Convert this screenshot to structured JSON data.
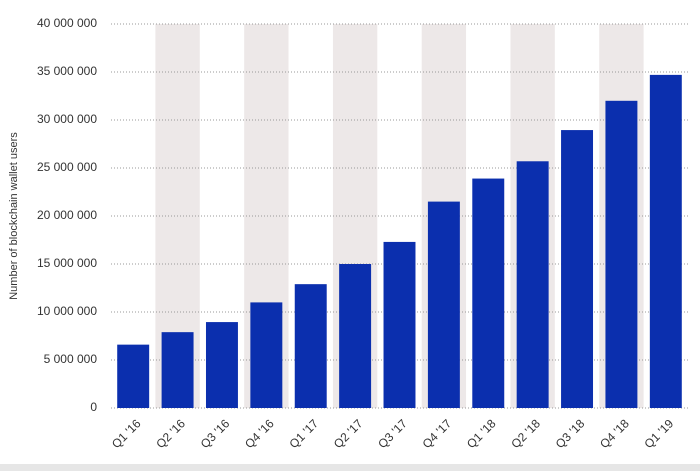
{
  "chart_data": {
    "type": "bar",
    "y_axis_label": "Number of blockchain wallet users",
    "categories": [
      "Q1 '16",
      "Q2 '16",
      "Q3 '16",
      "Q4 '16",
      "Q1 '17",
      "Q2 '17",
      "Q3 '17",
      "Q4 '17",
      "Q1 '18",
      "Q2 '18",
      "Q3 '18",
      "Q4 '18",
      "Q1 '19"
    ],
    "values": [
      6600000,
      7900000,
      8950000,
      11000000,
      12900000,
      15000000,
      17300000,
      21500000,
      23900000,
      25700000,
      28950000,
      32000000,
      34700000
    ],
    "color": "#0b2fae",
    "band_color": "#ede8e8",
    "ylim": [
      0,
      40000000
    ],
    "yticks": [
      0,
      {
        "value": 5000000,
        "label": "5 000 000"
      },
      {
        "value": 10000000,
        "label": "10 000 000"
      },
      {
        "value": 15000000,
        "label": "15 000 000"
      },
      {
        "value": 20000000,
        "label": "20 000 000"
      },
      {
        "value": 25000000,
        "label": "25 000 000"
      },
      {
        "value": 30000000,
        "label": "30 000 000"
      },
      {
        "value": 35000000,
        "label": "35 000 000"
      },
      {
        "value": 40000000,
        "label": "40 000 000"
      }
    ],
    "grid": true
  }
}
